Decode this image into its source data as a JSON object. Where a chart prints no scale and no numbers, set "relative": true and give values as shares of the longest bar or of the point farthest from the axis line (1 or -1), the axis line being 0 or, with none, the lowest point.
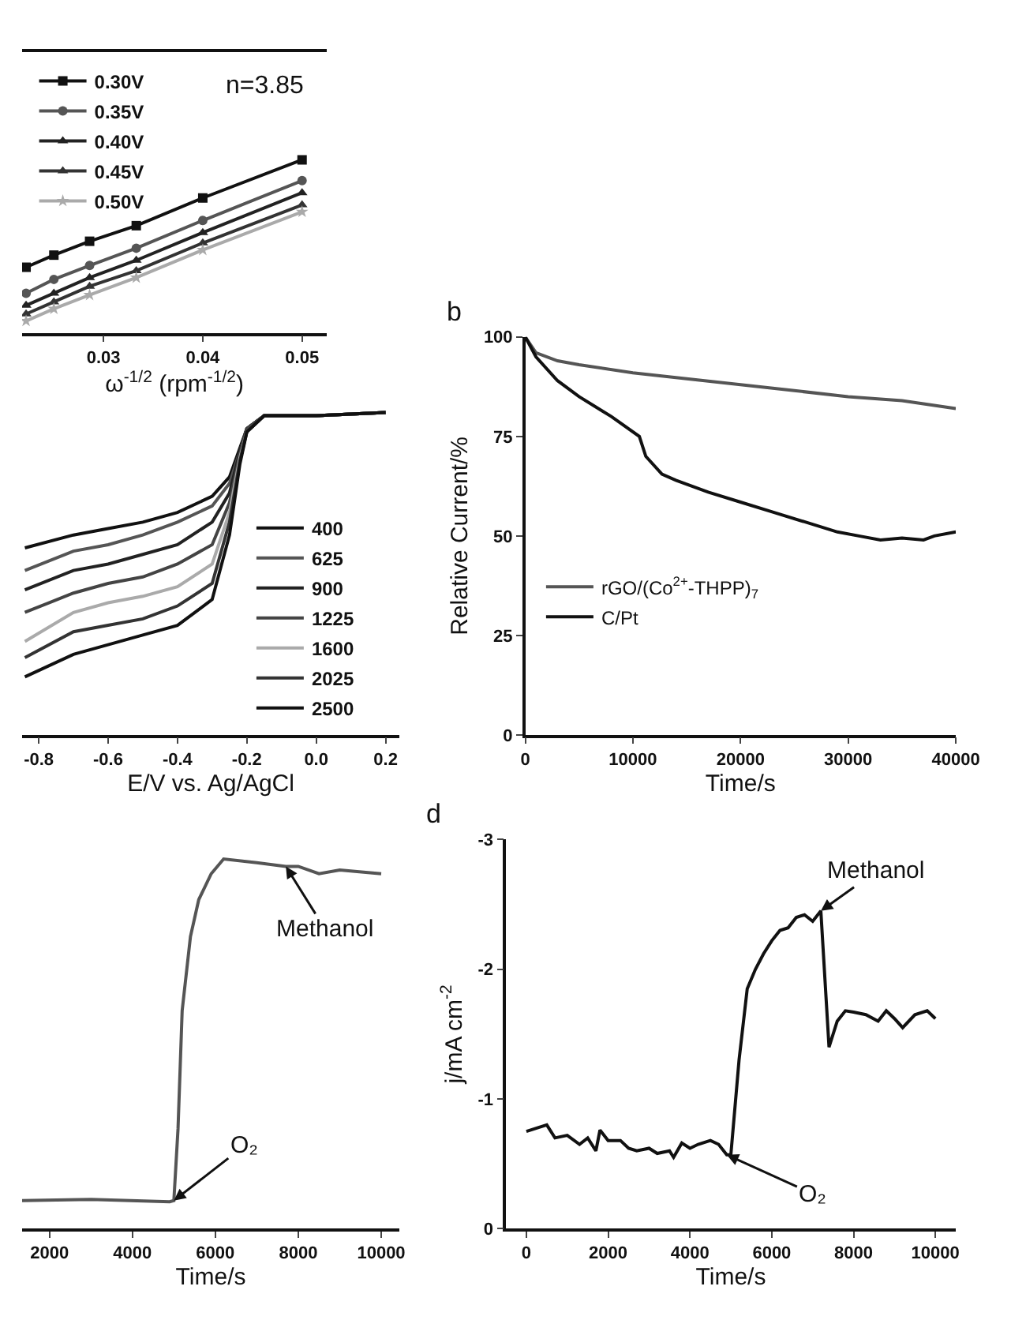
{
  "chart_data": [
    {
      "type": "line",
      "xlabel": "ω$^{-1/2}$ (rpm$^{-1/2}$)",
      "relative": true,
      "x": [
        0.0222,
        0.025,
        0.0286,
        0.0333,
        0.04,
        0.05
      ],
      "xlim": [
        0.0218,
        0.0525
      ],
      "xticks": [
        0.03,
        0.04,
        0.05
      ],
      "legend": "top left",
      "annotations": [
        "n=3.85"
      ],
      "series": [
        {
          "name": "0.30V",
          "color": "#111111",
          "marker": "square",
          "values": [
            0.38,
            0.45,
            0.53,
            0.62,
            0.78,
            1
          ]
        },
        {
          "name": "0.35V",
          "color": "#555555",
          "marker": "circle",
          "values": [
            0.23,
            0.31,
            0.39,
            0.49,
            0.65,
            0.88
          ]
        },
        {
          "name": "0.40V",
          "color": "#222222",
          "marker": "triangle",
          "values": [
            0.16,
            0.23,
            0.32,
            0.42,
            0.58,
            0.81
          ]
        },
        {
          "name": "0.45V",
          "color": "#333333",
          "marker": "triangle",
          "values": [
            0.11,
            0.18,
            0.27,
            0.36,
            0.52,
            0.74
          ]
        },
        {
          "name": "0.50V",
          "color": "#aaaaaa",
          "marker": "star",
          "values": [
            0.07,
            0.14,
            0.22,
            0.32,
            0.48,
            0.7
          ]
        }
      ]
    },
    {
      "type": "line",
      "xlabel": "E/V vs. Ag/AgCl",
      "relative": true,
      "x": [
        -0.84,
        -0.7,
        -0.6,
        -0.5,
        -0.4,
        -0.3,
        -0.25,
        -0.22,
        -0.2,
        -0.15,
        0,
        0.2
      ],
      "xlim": [
        -0.848,
        0.24
      ],
      "xticks": [
        -0.8,
        -0.6,
        -0.4,
        -0.2,
        {
          "value": 0,
          "label": "0.0"
        },
        0.2
      ],
      "legend": "right",
      "marker": "none",
      "series": [
        {
          "name": "400",
          "color": "#111111",
          "values": [
            0.58,
            0.62,
            0.64,
            0.66,
            0.69,
            0.74,
            0.8,
            0.89,
            0.95,
            0.99,
            0.99,
            1
          ]
        },
        {
          "name": "625",
          "color": "#555555",
          "values": [
            0.51,
            0.57,
            0.59,
            0.62,
            0.66,
            0.71,
            0.78,
            0.88,
            0.95,
            0.99,
            0.99,
            1
          ]
        },
        {
          "name": "900",
          "color": "#222222",
          "values": [
            0.45,
            0.51,
            0.53,
            0.56,
            0.59,
            0.66,
            0.75,
            0.88,
            0.95,
            0.99,
            0.99,
            1
          ]
        },
        {
          "name": "1225",
          "color": "#444444",
          "values": [
            0.38,
            0.44,
            0.47,
            0.49,
            0.53,
            0.59,
            0.72,
            0.87,
            0.95,
            0.99,
            0.99,
            1
          ]
        },
        {
          "name": "1600",
          "color": "#aaaaaa",
          "values": [
            0.29,
            0.38,
            0.41,
            0.43,
            0.46,
            0.53,
            0.69,
            0.86,
            0.94,
            0.99,
            0.99,
            1
          ]
        },
        {
          "name": "2025",
          "color": "#333333",
          "values": [
            0.24,
            0.32,
            0.34,
            0.36,
            0.4,
            0.47,
            0.66,
            0.85,
            0.94,
            0.99,
            0.99,
            1
          ]
        },
        {
          "name": "2500",
          "color": "#111111",
          "values": [
            0.18,
            0.25,
            0.28,
            0.31,
            0.34,
            0.42,
            0.62,
            0.84,
            0.94,
            0.99,
            0.99,
            1
          ]
        }
      ]
    },
    {
      "type": "line",
      "title": "b",
      "xlabel": "Time/s",
      "ylabel": "Relative Current/%",
      "xlim": [
        0,
        40000
      ],
      "xticks": [
        0,
        10000,
        20000,
        30000,
        40000
      ],
      "ylim": [
        0,
        100
      ],
      "yticks": [
        0,
        25,
        50,
        75,
        100
      ],
      "legend": "bottom left",
      "marker": "none",
      "series": [
        {
          "name": "rGO/(Co$^{2+}$-THPP)$_{7}$",
          "color": "#555555",
          "x": [
            0,
            1000,
            3000,
            5000,
            10000,
            15000,
            20000,
            25000,
            30000,
            35000,
            40000
          ],
          "values": [
            100,
            96,
            94,
            93,
            91,
            89.5,
            88,
            86.5,
            85,
            84,
            82
          ]
        },
        {
          "name": "C/Pt",
          "color": "#111111",
          "x": [
            0,
            1000,
            3000,
            5000,
            8000,
            10600,
            11200,
            12700,
            14000,
            17000,
            20000,
            23000,
            26000,
            29000,
            31000,
            33000,
            35000,
            37000,
            38000,
            40000
          ],
          "values": [
            100,
            95,
            89,
            85,
            80,
            75,
            70,
            65.5,
            64,
            61,
            58.5,
            56,
            53.5,
            51,
            50,
            49,
            49.5,
            49,
            50,
            51
          ]
        }
      ]
    },
    {
      "type": "line",
      "xlabel": "Time/s",
      "relative": true,
      "xlim": [
        1340,
        10440
      ],
      "xticks": [
        2000,
        4000,
        6000,
        8000,
        10000
      ],
      "legend": false,
      "marker": "none",
      "x": [
        1340,
        3000,
        4900,
        5000,
        5100,
        5200,
        5400,
        5600,
        5900,
        6200,
        7000,
        7700,
        8000,
        8500,
        9000,
        10000
      ],
      "series": [
        {
          "color": "#555555",
          "values": [
            0.076,
            0.079,
            0.073,
            0.076,
            0.27,
            0.59,
            0.79,
            0.89,
            0.96,
            1,
            0.99,
            0.98,
            0.98,
            0.96,
            0.97,
            0.96
          ]
        }
      ],
      "annotations": [
        {
          "text": "Methanol",
          "x": 7700,
          "y": 0.98
        },
        {
          "text": "O₂",
          "x": 5000,
          "y": 0.076
        }
      ]
    },
    {
      "type": "line",
      "title": "d",
      "xlabel": "Time/s",
      "ylabel": "j/mA cm$^{-2}$",
      "xlim": [
        -500,
        10500
      ],
      "xticks": [
        0,
        2000,
        4000,
        6000,
        8000,
        10000
      ],
      "ylim": [
        0,
        -3
      ],
      "yticks": [
        0,
        -1,
        -2,
        -3
      ],
      "legend": false,
      "marker": "none",
      "x": [
        0,
        300,
        500,
        700,
        1000,
        1300,
        1500,
        1700,
        1800,
        2000,
        2300,
        2500,
        2700,
        3000,
        3200,
        3500,
        3600,
        3800,
        4000,
        4200,
        4500,
        4700,
        4900,
        5000,
        5200,
        5400,
        5600,
        5800,
        6000,
        6200,
        6400,
        6600,
        6800,
        7000,
        7200,
        7400,
        7600,
        7800,
        8000,
        8300,
        8600,
        8800,
        9000,
        9200,
        9500,
        9800,
        10000
      ],
      "series": [
        {
          "color": "#111111",
          "values": [
            -0.75,
            -0.78,
            -0.8,
            -0.7,
            -0.72,
            -0.65,
            -0.7,
            -0.6,
            -0.76,
            -0.68,
            -0.68,
            -0.62,
            -0.6,
            -0.62,
            -0.58,
            -0.6,
            -0.55,
            -0.66,
            -0.62,
            -0.65,
            -0.68,
            -0.65,
            -0.57,
            -0.57,
            -1.3,
            -1.85,
            -2.0,
            -2.12,
            -2.22,
            -2.3,
            -2.32,
            -2.4,
            -2.42,
            -2.37,
            -2.45,
            -1.4,
            -1.6,
            -1.68,
            -1.67,
            -1.65,
            -1.6,
            -1.68,
            -1.62,
            -1.55,
            -1.65,
            -1.68,
            -1.62
          ]
        }
      ],
      "annotations": [
        {
          "text": "Methanol",
          "x": 7200,
          "y": -2.45
        },
        {
          "text": "O₂",
          "x": 4900,
          "y": -0.57
        }
      ]
    }
  ]
}
